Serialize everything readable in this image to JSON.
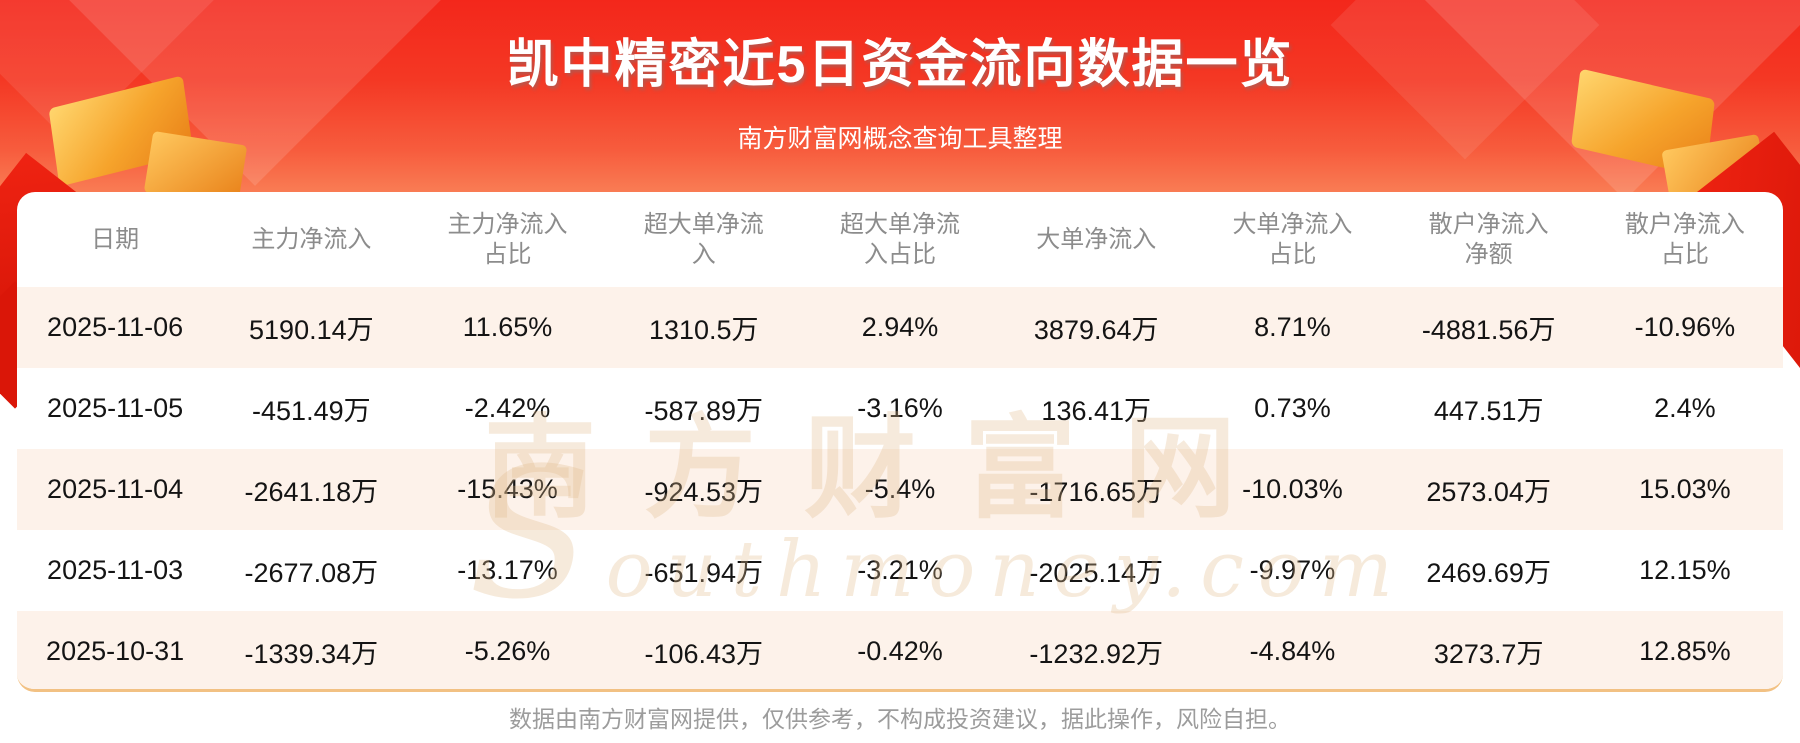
{
  "banner": {
    "title": "凯中精密近5日资金流向数据一览",
    "subtitle": "南方财富网概念查询工具整理"
  },
  "watermark": {
    "cn": "南方财富网",
    "en": "Southmoney.com"
  },
  "footer": {
    "note": "数据由南方财富网提供，仅供参考，不构成投资建议，据此操作，风险自担。"
  },
  "table": {
    "header_display": [
      "日期",
      "主力净流入",
      "主力净流入\n占比",
      "超大单净流\n入",
      "超大单净流\n入占比",
      "大单净流入",
      "大单净流入\n占比",
      "散户净流入\n净额",
      "散户净流入\n占比"
    ]
  },
  "colors": {
    "banner_red_top": "#f3271b",
    "banner_fade": "#fdc6a0",
    "row_alt": "#fdf2ea",
    "header_text": "#8c8c8c",
    "cell_text": "#141414",
    "footer_text": "#9c9c9c",
    "card_bottom_border": "#f2c183",
    "gold_accent": "#f6a42c",
    "watermark": "#e2ba8a"
  },
  "chart_data": {
    "type": "table",
    "title": "凯中精密近5日资金流向数据一览",
    "subtitle": "南方财富网概念查询工具整理",
    "columns": [
      "日期",
      "主力净流入",
      "主力净流入占比",
      "超大单净流入",
      "超大单净流入占比",
      "大单净流入",
      "大单净流入占比",
      "散户净流入净额",
      "散户净流入占比"
    ],
    "rows": [
      [
        "2025-11-06",
        "5190.14万",
        "11.65%",
        "1310.5万",
        "2.94%",
        "3879.64万",
        "8.71%",
        "-4881.56万",
        "-10.96%"
      ],
      [
        "2025-11-05",
        "-451.49万",
        "-2.42%",
        "-587.89万",
        "-3.16%",
        "136.41万",
        "0.73%",
        "447.51万",
        "2.4%"
      ],
      [
        "2025-11-04",
        "-2641.18万",
        "-15.43%",
        "-924.53万",
        "-5.4%",
        "-1716.65万",
        "-10.03%",
        "2573.04万",
        "15.03%"
      ],
      [
        "2025-11-03",
        "-2677.08万",
        "-13.17%",
        "-651.94万",
        "-3.21%",
        "-2025.14万",
        "-9.97%",
        "2469.69万",
        "12.15%"
      ],
      [
        "2025-10-31",
        "-1339.34万",
        "-5.26%",
        "-106.43万",
        "-0.42%",
        "-1232.92万",
        "-4.84%",
        "3273.7万",
        "12.85%"
      ]
    ]
  }
}
